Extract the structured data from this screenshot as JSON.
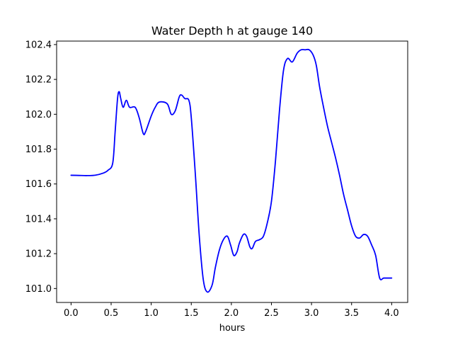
{
  "chart_data": {
    "type": "line",
    "title": "Water Depth h at gauge 140",
    "xlabel": "hours",
    "ylabel": "",
    "xlim": [
      -0.18,
      4.2
    ],
    "ylim": [
      100.92,
      102.42
    ],
    "x_ticks": [
      0.0,
      0.5,
      1.0,
      1.5,
      2.0,
      2.5,
      3.0,
      3.5,
      4.0
    ],
    "x_tick_labels": [
      "0.0",
      "0.5",
      "1.0",
      "1.5",
      "2.0",
      "2.5",
      "3.0",
      "3.5",
      "4.0"
    ],
    "y_ticks": [
      101.0,
      101.2,
      101.4,
      101.6,
      101.8,
      102.0,
      102.2,
      102.4
    ],
    "y_tick_labels": [
      "101.0",
      "101.2",
      "101.4",
      "101.6",
      "101.8",
      "102.0",
      "102.2",
      "102.4"
    ],
    "grid": false,
    "series": [
      {
        "color": "#0000ff",
        "x": [
          0.0,
          0.1,
          0.2,
          0.3,
          0.4,
          0.46,
          0.52,
          0.55,
          0.58,
          0.6,
          0.62,
          0.65,
          0.69,
          0.73,
          0.8,
          0.85,
          0.9,
          0.93,
          1.0,
          1.05,
          1.1,
          1.2,
          1.25,
          1.3,
          1.35,
          1.38,
          1.42,
          1.47,
          1.5,
          1.55,
          1.6,
          1.65,
          1.7,
          1.76,
          1.8,
          1.85,
          1.9,
          1.95,
          1.99,
          2.03,
          2.07,
          2.1,
          2.15,
          2.19,
          2.23,
          2.26,
          2.3,
          2.35,
          2.4,
          2.45,
          2.5,
          2.55,
          2.6,
          2.65,
          2.7,
          2.76,
          2.82,
          2.87,
          2.92,
          2.97,
          3.02,
          3.06,
          3.1,
          3.15,
          3.2,
          3.25,
          3.3,
          3.35,
          3.4,
          3.45,
          3.5,
          3.55,
          3.6,
          3.65,
          3.7,
          3.75,
          3.8,
          3.85,
          3.9,
          3.95,
          4.0
        ],
        "y": [
          101.65,
          101.649,
          101.648,
          101.65,
          101.662,
          101.678,
          101.72,
          101.9,
          102.09,
          102.13,
          102.09,
          102.04,
          102.08,
          102.04,
          102.04,
          101.98,
          101.89,
          101.9,
          101.99,
          102.04,
          102.07,
          102.06,
          102.0,
          102.02,
          102.1,
          102.11,
          102.09,
          102.08,
          101.98,
          101.66,
          101.3,
          101.05,
          100.98,
          101.02,
          101.12,
          101.22,
          101.28,
          101.3,
          101.25,
          101.19,
          101.21,
          101.26,
          101.31,
          101.3,
          101.24,
          101.23,
          101.27,
          101.28,
          101.3,
          101.38,
          101.5,
          101.73,
          102.02,
          102.25,
          102.32,
          102.3,
          102.35,
          102.37,
          102.37,
          102.37,
          102.34,
          102.28,
          102.16,
          102.04,
          101.93,
          101.84,
          101.75,
          101.65,
          101.54,
          101.45,
          101.36,
          101.3,
          101.29,
          101.31,
          101.3,
          101.25,
          101.19,
          101.06,
          101.06,
          101.06,
          101.06
        ]
      }
    ]
  }
}
